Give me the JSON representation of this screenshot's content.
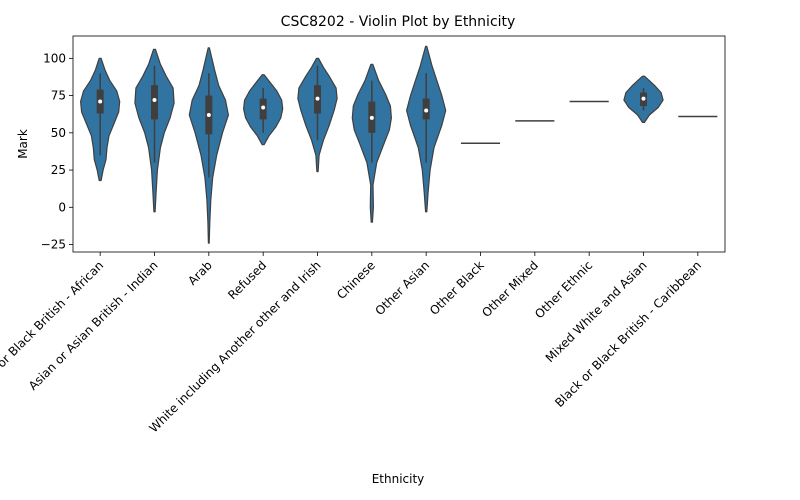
{
  "chart_data": {
    "type": "violin",
    "title": "CSC8202 - Violin Plot by Ethnicity",
    "xlabel": "Ethnicity",
    "ylabel": "Mark",
    "ylim": [
      -30,
      115
    ],
    "yticks": [
      -25,
      0,
      25,
      50,
      75,
      100
    ],
    "grid": false,
    "color": "#3274a1",
    "edge_color": "#3f3f3f",
    "categories": [
      "Black or Black British - African",
      "Asian or Asian British - Indian",
      "Arab",
      "Refused",
      "White including Another other and Irish",
      "Chinese",
      "Other Asian",
      "Other Black",
      "Other Mixed",
      "Other Ethnic",
      "Mixed White and Asian",
      "Black or Black British - Caribbean"
    ],
    "violins": [
      {
        "min": 18,
        "max": 100,
        "q1": 63,
        "median": 71,
        "q3": 79,
        "whisker_low": 35,
        "whisker_high": 90,
        "density": [
          [
            18,
            0.05
          ],
          [
            25,
            0.15
          ],
          [
            32,
            0.3
          ],
          [
            40,
            0.35
          ],
          [
            48,
            0.45
          ],
          [
            56,
            0.7
          ],
          [
            64,
            0.95
          ],
          [
            71,
            1.0
          ],
          [
            78,
            0.85
          ],
          [
            85,
            0.5
          ],
          [
            92,
            0.25
          ],
          [
            100,
            0.05
          ]
        ]
      },
      {
        "min": -3,
        "max": 106,
        "q1": 59,
        "median": 72,
        "q3": 82,
        "whisker_low": 30,
        "whisker_high": 95,
        "density": [
          [
            -3,
            0.03
          ],
          [
            10,
            0.08
          ],
          [
            25,
            0.15
          ],
          [
            40,
            0.3
          ],
          [
            50,
            0.5
          ],
          [
            60,
            0.8
          ],
          [
            70,
            1.0
          ],
          [
            80,
            0.95
          ],
          [
            88,
            0.6
          ],
          [
            96,
            0.3
          ],
          [
            106,
            0.05
          ]
        ]
      },
      {
        "min": -24,
        "max": 107,
        "q1": 49,
        "median": 62,
        "q3": 75,
        "whisker_low": 20,
        "whisker_high": 90,
        "density": [
          [
            -24,
            0.02
          ],
          [
            -10,
            0.05
          ],
          [
            5,
            0.1
          ],
          [
            20,
            0.2
          ],
          [
            35,
            0.4
          ],
          [
            50,
            0.7
          ],
          [
            62,
            1.0
          ],
          [
            72,
            0.85
          ],
          [
            82,
            0.5
          ],
          [
            92,
            0.3
          ],
          [
            107,
            0.03
          ]
        ]
      },
      {
        "min": 42,
        "max": 89,
        "q1": 59,
        "median": 67,
        "q3": 73,
        "whisker_low": 50,
        "whisker_high": 80,
        "density": [
          [
            42,
            0.05
          ],
          [
            48,
            0.3
          ],
          [
            54,
            0.65
          ],
          [
            60,
            0.9
          ],
          [
            66,
            1.0
          ],
          [
            72,
            0.95
          ],
          [
            78,
            0.7
          ],
          [
            84,
            0.35
          ],
          [
            89,
            0.05
          ]
        ]
      },
      {
        "min": 24,
        "max": 100,
        "q1": 63,
        "median": 73,
        "q3": 82,
        "whisker_low": 45,
        "whisker_high": 95,
        "density": [
          [
            24,
            0.03
          ],
          [
            35,
            0.08
          ],
          [
            45,
            0.3
          ],
          [
            55,
            0.6
          ],
          [
            65,
            0.85
          ],
          [
            73,
            1.0
          ],
          [
            80,
            0.95
          ],
          [
            88,
            0.6
          ],
          [
            94,
            0.3
          ],
          [
            100,
            0.05
          ]
        ]
      },
      {
        "min": -10,
        "max": 96,
        "q1": 50,
        "median": 60,
        "q3": 71,
        "whisker_low": 30,
        "whisker_high": 85,
        "density": [
          [
            -10,
            0.03
          ],
          [
            0,
            0.08
          ],
          [
            15,
            0.06
          ],
          [
            30,
            0.25
          ],
          [
            42,
            0.6
          ],
          [
            52,
            0.9
          ],
          [
            60,
            1.0
          ],
          [
            68,
            0.95
          ],
          [
            76,
            0.7
          ],
          [
            85,
            0.35
          ],
          [
            96,
            0.05
          ]
        ]
      },
      {
        "min": -3,
        "max": 108,
        "q1": 59,
        "median": 65,
        "q3": 73,
        "whisker_low": 30,
        "whisker_high": 90,
        "density": [
          [
            -3,
            0.03
          ],
          [
            10,
            0.1
          ],
          [
            25,
            0.2
          ],
          [
            40,
            0.4
          ],
          [
            55,
            0.8
          ],
          [
            65,
            1.0
          ],
          [
            75,
            0.8
          ],
          [
            85,
            0.55
          ],
          [
            95,
            0.3
          ],
          [
            108,
            0.03
          ]
        ]
      },
      {
        "single": 43
      },
      {
        "single": 58
      },
      {
        "single": 71
      },
      {
        "min": 57,
        "max": 88,
        "q1": 68,
        "median": 73,
        "q3": 77,
        "whisker_low": 65,
        "whisker_high": 80,
        "density": [
          [
            57,
            0.05
          ],
          [
            62,
            0.3
          ],
          [
            67,
            0.75
          ],
          [
            72,
            1.0
          ],
          [
            77,
            0.9
          ],
          [
            82,
            0.55
          ],
          [
            88,
            0.05
          ]
        ]
      },
      {
        "single": 61
      }
    ]
  }
}
